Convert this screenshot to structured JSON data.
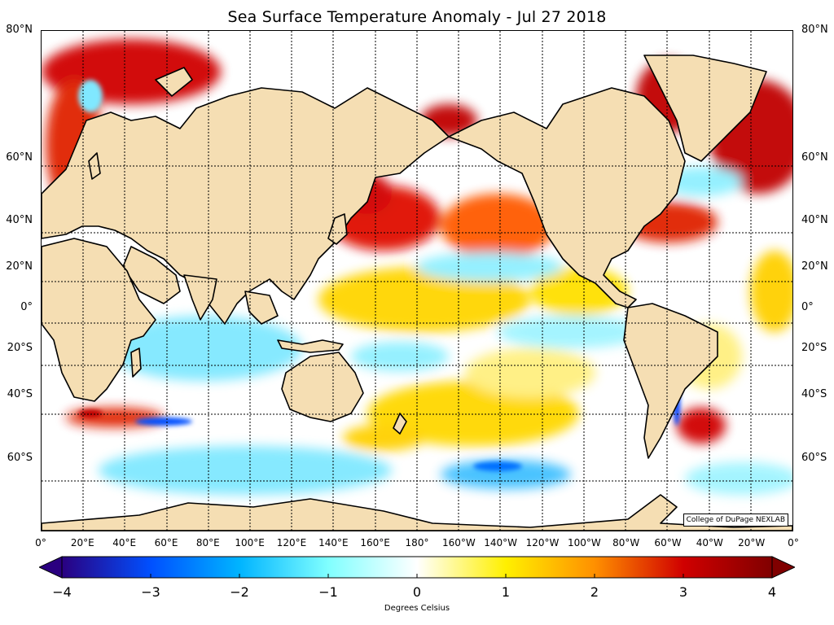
{
  "title": "Sea Surface Temperature Anomaly - Jul 27 2018",
  "credit": "College of DuPage NEXLAB",
  "lat_labels": [
    "80°N",
    "60°N",
    "40°N",
    "20°N",
    "0°",
    "20°S",
    "40°S",
    "60°S"
  ],
  "lat_values": [
    80,
    60,
    40,
    20,
    0,
    -20,
    -40,
    -60
  ],
  "lon_labels": [
    "0°",
    "20°E",
    "40°E",
    "60°E",
    "80°E",
    "100°E",
    "120°E",
    "140°E",
    "160°E",
    "180°",
    "160°W",
    "140°W",
    "120°W",
    "100°W",
    "80°W",
    "60°W",
    "40°W",
    "20°W",
    "0°"
  ],
  "colorbar": {
    "label": "Degrees Celsius",
    "ticks": [
      "−4",
      "−3",
      "−2",
      "−1",
      "0",
      "1",
      "2",
      "3",
      "4"
    ],
    "min": -4,
    "max": 4,
    "colors": [
      "#2a0080",
      "#0050ff",
      "#00b4ff",
      "#80ffff",
      "#ffffff",
      "#fff000",
      "#ff9000",
      "#d00000",
      "#800000"
    ]
  },
  "colors": {
    "land": "#f5deb3",
    "ocean": "#ffffff",
    "coastline": "#000000",
    "grid": "#000000"
  }
}
